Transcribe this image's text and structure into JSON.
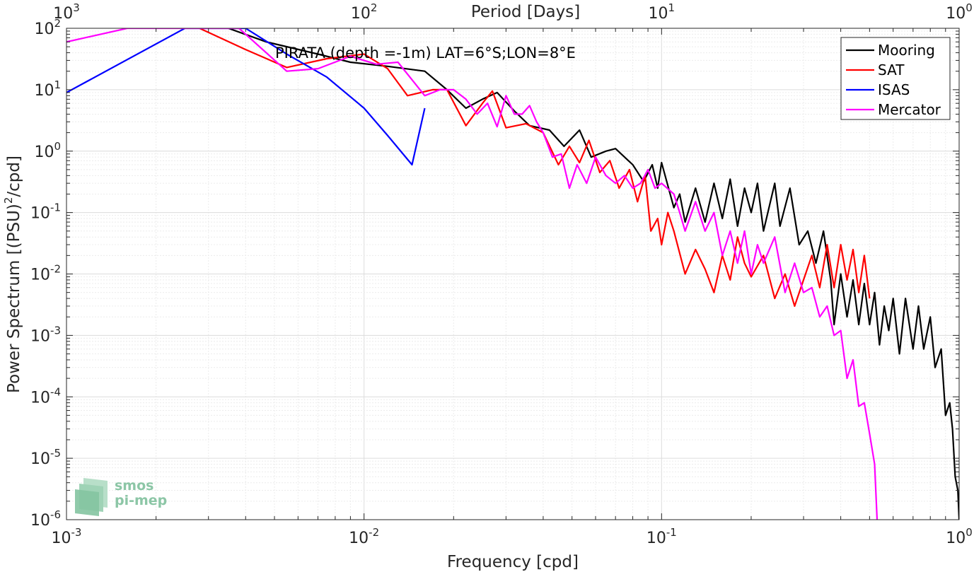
{
  "chart_data": {
    "type": "line",
    "title": "",
    "annotation": "PIRATA (depth =-1m) LAT=6°S;LON=8°E",
    "xlabel": "Frequency [cpd]",
    "ylabel": "Power Spectrum [(PSU)",
    "ylabel_sup": "2",
    "ylabel_tail": "/cpd]",
    "x2label": "Period [Days]",
    "xscale": "log",
    "yscale": "log",
    "xlim": [
      0.001,
      1
    ],
    "ylim": [
      1e-06,
      100
    ],
    "grid": true,
    "legend_position": "top-right",
    "x_ticks": [
      {
        "b": "10",
        "e": "-3"
      },
      {
        "b": "10",
        "e": "-2"
      },
      {
        "b": "10",
        "e": "-1"
      },
      {
        "b": "10",
        "e": "0"
      }
    ],
    "x2_ticks": [
      {
        "b": "10",
        "e": "3"
      },
      {
        "b": "10",
        "e": "2"
      },
      {
        "b": "10",
        "e": "1"
      },
      {
        "b": "10",
        "e": "0"
      }
    ],
    "y_ticks": [
      {
        "b": "10",
        "e": "2"
      },
      {
        "b": "10",
        "e": "1"
      },
      {
        "b": "10",
        "e": "0"
      },
      {
        "b": "10",
        "e": "-1"
      },
      {
        "b": "10",
        "e": "-2"
      },
      {
        "b": "10",
        "e": "-3"
      },
      {
        "b": "10",
        "e": "-4"
      },
      {
        "b": "10",
        "e": "-5"
      },
      {
        "b": "10",
        "e": "-6"
      }
    ],
    "series": [
      {
        "name": "Mooring",
        "color": "#000000",
        "points": [
          [
            0.0035,
            100
          ],
          [
            0.0047,
            60
          ],
          [
            0.007,
            38
          ],
          [
            0.009,
            28
          ],
          [
            0.012,
            24
          ],
          [
            0.016,
            20
          ],
          [
            0.019,
            10
          ],
          [
            0.022,
            5
          ],
          [
            0.025,
            7
          ],
          [
            0.028,
            9
          ],
          [
            0.032,
            4.5
          ],
          [
            0.036,
            2.6
          ],
          [
            0.042,
            2.2
          ],
          [
            0.047,
            1.2
          ],
          [
            0.053,
            2.2
          ],
          [
            0.058,
            0.8
          ],
          [
            0.065,
            1.0
          ],
          [
            0.07,
            1.1
          ],
          [
            0.08,
            0.6
          ],
          [
            0.087,
            0.32
          ],
          [
            0.093,
            0.6
          ],
          [
            0.097,
            0.25
          ],
          [
            0.1,
            0.65
          ],
          [
            0.11,
            0.12
          ],
          [
            0.115,
            0.2
          ],
          [
            0.12,
            0.07
          ],
          [
            0.13,
            0.25
          ],
          [
            0.14,
            0.07
          ],
          [
            0.15,
            0.3
          ],
          [
            0.16,
            0.08
          ],
          [
            0.17,
            0.35
          ],
          [
            0.18,
            0.06
          ],
          [
            0.19,
            0.25
          ],
          [
            0.2,
            0.1
          ],
          [
            0.21,
            0.3
          ],
          [
            0.22,
            0.05
          ],
          [
            0.24,
            0.3
          ],
          [
            0.25,
            0.06
          ],
          [
            0.27,
            0.25
          ],
          [
            0.29,
            0.03
          ],
          [
            0.31,
            0.05
          ],
          [
            0.33,
            0.015
          ],
          [
            0.35,
            0.05
          ],
          [
            0.37,
            0.008
          ],
          [
            0.38,
            0.0015
          ],
          [
            0.4,
            0.01
          ],
          [
            0.42,
            0.002
          ],
          [
            0.44,
            0.008
          ],
          [
            0.46,
            0.0015
          ],
          [
            0.48,
            0.007
          ],
          [
            0.5,
            0.0015
          ],
          [
            0.52,
            0.005
          ],
          [
            0.54,
            0.0007
          ],
          [
            0.56,
            0.003
          ],
          [
            0.58,
            0.0012
          ],
          [
            0.6,
            0.004
          ],
          [
            0.63,
            0.0005
          ],
          [
            0.66,
            0.004
          ],
          [
            0.7,
            0.0006
          ],
          [
            0.73,
            0.003
          ],
          [
            0.76,
            0.0006
          ],
          [
            0.8,
            0.002
          ],
          [
            0.83,
            0.0003
          ],
          [
            0.87,
            0.0006
          ],
          [
            0.9,
            5e-05
          ],
          [
            0.93,
            8e-05
          ],
          [
            0.95,
            3e-05
          ],
          [
            0.97,
            5e-06
          ],
          [
            0.99,
            3e-06
          ],
          [
            1.0,
            1e-06
          ]
        ]
      },
      {
        "name": "SAT",
        "color": "#ff0000",
        "points": [
          [
            0.0028,
            100
          ],
          [
            0.004,
            45
          ],
          [
            0.0055,
            23
          ],
          [
            0.0075,
            32
          ],
          [
            0.01,
            38
          ],
          [
            0.012,
            22
          ],
          [
            0.014,
            8
          ],
          [
            0.017,
            10
          ],
          [
            0.019,
            10
          ],
          [
            0.022,
            2.6
          ],
          [
            0.025,
            6
          ],
          [
            0.027,
            9.5
          ],
          [
            0.03,
            2.4
          ],
          [
            0.035,
            2.8
          ],
          [
            0.04,
            2.0
          ],
          [
            0.045,
            0.6
          ],
          [
            0.049,
            1.2
          ],
          [
            0.053,
            0.65
          ],
          [
            0.057,
            1.5
          ],
          [
            0.062,
            0.45
          ],
          [
            0.067,
            0.7
          ],
          [
            0.072,
            0.25
          ],
          [
            0.078,
            0.5
          ],
          [
            0.083,
            0.15
          ],
          [
            0.088,
            0.4
          ],
          [
            0.092,
            0.05
          ],
          [
            0.097,
            0.08
          ],
          [
            0.1,
            0.03
          ],
          [
            0.105,
            0.1
          ],
          [
            0.11,
            0.05
          ],
          [
            0.12,
            0.01
          ],
          [
            0.13,
            0.025
          ],
          [
            0.14,
            0.012
          ],
          [
            0.15,
            0.005
          ],
          [
            0.16,
            0.02
          ],
          [
            0.17,
            0.008
          ],
          [
            0.18,
            0.04
          ],
          [
            0.19,
            0.015
          ],
          [
            0.2,
            0.009
          ],
          [
            0.22,
            0.02
          ],
          [
            0.24,
            0.004
          ],
          [
            0.26,
            0.01
          ],
          [
            0.28,
            0.003
          ],
          [
            0.3,
            0.008
          ],
          [
            0.32,
            0.02
          ],
          [
            0.34,
            0.006
          ],
          [
            0.36,
            0.03
          ],
          [
            0.38,
            0.006
          ],
          [
            0.4,
            0.03
          ],
          [
            0.42,
            0.008
          ],
          [
            0.44,
            0.025
          ],
          [
            0.46,
            0.005
          ],
          [
            0.48,
            0.02
          ],
          [
            0.5,
            0.004
          ]
        ]
      },
      {
        "name": "ISAS",
        "color": "#0000ff",
        "points": [
          [
            0.001,
            9
          ],
          [
            0.0025,
            100
          ],
          [
            0.004,
            100
          ],
          [
            0.0055,
            38
          ],
          [
            0.0075,
            16
          ],
          [
            0.01,
            5
          ],
          [
            0.012,
            1.8
          ],
          [
            0.0145,
            0.6
          ],
          [
            0.016,
            5
          ]
        ]
      },
      {
        "name": "Mercator",
        "color": "#ff00ff",
        "points": [
          [
            0.001,
            60
          ],
          [
            0.0016,
            100
          ],
          [
            0.0038,
            100
          ],
          [
            0.0055,
            20
          ],
          [
            0.007,
            22
          ],
          [
            0.009,
            35
          ],
          [
            0.011,
            26
          ],
          [
            0.013,
            28
          ],
          [
            0.016,
            8
          ],
          [
            0.018,
            10
          ],
          [
            0.02,
            10
          ],
          [
            0.022,
            7
          ],
          [
            0.024,
            4
          ],
          [
            0.026,
            6
          ],
          [
            0.028,
            2.5
          ],
          [
            0.03,
            8
          ],
          [
            0.032,
            4
          ],
          [
            0.034,
            4
          ],
          [
            0.036,
            5.5
          ],
          [
            0.038,
            3
          ],
          [
            0.04,
            2
          ],
          [
            0.043,
            0.8
          ],
          [
            0.046,
            0.9
          ],
          [
            0.049,
            0.25
          ],
          [
            0.052,
            0.6
          ],
          [
            0.056,
            0.3
          ],
          [
            0.06,
            0.8
          ],
          [
            0.065,
            0.4
          ],
          [
            0.07,
            0.3
          ],
          [
            0.075,
            0.4
          ],
          [
            0.08,
            0.25
          ],
          [
            0.085,
            0.3
          ],
          [
            0.09,
            0.5
          ],
          [
            0.095,
            0.25
          ],
          [
            0.1,
            0.3
          ],
          [
            0.11,
            0.2
          ],
          [
            0.115,
            0.1
          ],
          [
            0.12,
            0.05
          ],
          [
            0.13,
            0.15
          ],
          [
            0.14,
            0.05
          ],
          [
            0.15,
            0.1
          ],
          [
            0.16,
            0.02
          ],
          [
            0.17,
            0.05
          ],
          [
            0.18,
            0.015
          ],
          [
            0.19,
            0.05
          ],
          [
            0.2,
            0.01
          ],
          [
            0.21,
            0.03
          ],
          [
            0.22,
            0.015
          ],
          [
            0.24,
            0.04
          ],
          [
            0.26,
            0.005
          ],
          [
            0.28,
            0.015
          ],
          [
            0.3,
            0.005
          ],
          [
            0.32,
            0.006
          ],
          [
            0.34,
            0.002
          ],
          [
            0.36,
            0.003
          ],
          [
            0.38,
            0.001
          ],
          [
            0.4,
            0.0012
          ],
          [
            0.42,
            0.0002
          ],
          [
            0.44,
            0.0004
          ],
          [
            0.46,
            7e-05
          ],
          [
            0.48,
            8e-05
          ],
          [
            0.5,
            2.5e-05
          ],
          [
            0.52,
            8e-06
          ],
          [
            0.53,
            1e-06
          ]
        ]
      }
    ]
  },
  "logo": {
    "line1": "smos",
    "line2": "pi-mep"
  }
}
